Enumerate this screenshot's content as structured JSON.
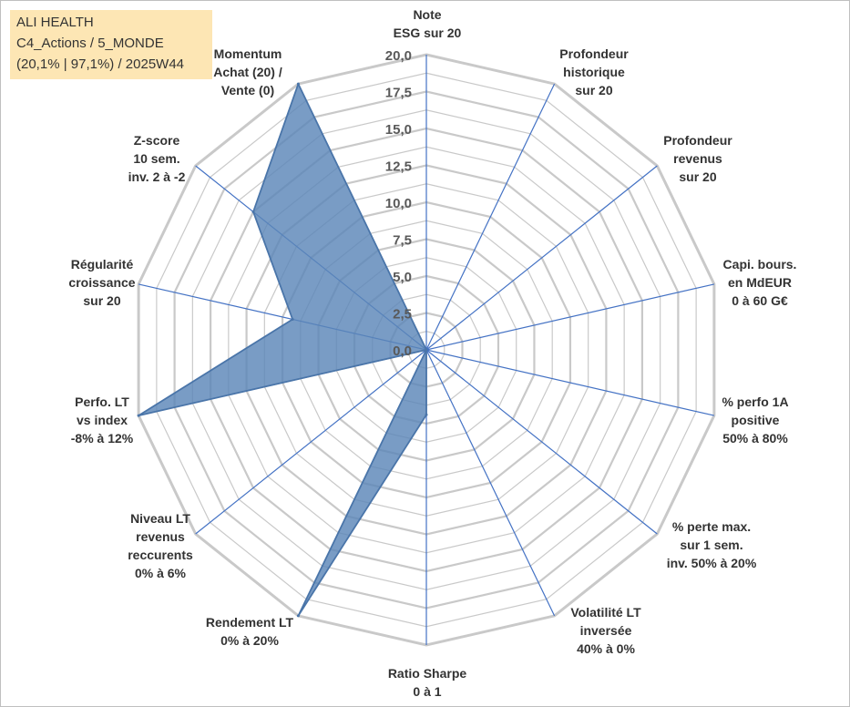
{
  "title_box": {
    "line1": "ALI HEALTH",
    "line2": "C4_Actions / 5_MONDE",
    "line3": "(20,1% | 97,1%) / 2025W44"
  },
  "chart_data": {
    "type": "radar",
    "title": "ALI HEALTH",
    "range": [
      0,
      20
    ],
    "ticks": [
      "0,0",
      "2,5",
      "5,0",
      "7,5",
      "10,0",
      "12,5",
      "15,0",
      "17,5",
      "20,0"
    ],
    "tick_values": [
      0,
      2.5,
      5,
      7.5,
      10,
      12.5,
      15,
      17.5,
      20
    ],
    "grid_rings": 16,
    "axes": [
      {
        "label": [
          "Note",
          "ESG sur 20"
        ],
        "value": 0
      },
      {
        "label": [
          "Profondeur",
          "historique",
          "sur 20"
        ],
        "value": 0
      },
      {
        "label": [
          "Profondeur",
          "revenus",
          "sur 20"
        ],
        "value": 0
      },
      {
        "label": [
          "Capi. bours.",
          "en MdEUR",
          "0 à 60 G€"
        ],
        "value": 0
      },
      {
        "label": [
          "% perfo 1A",
          "positive",
          "50% à 80%"
        ],
        "value": 0
      },
      {
        "label": [
          "% perte max.",
          "sur 1 sem.",
          "inv. 50% à 20%"
        ],
        "value": 0
      },
      {
        "label": [
          "Volatilité LT",
          "inversée",
          "40% à 0%"
        ],
        "value": 0
      },
      {
        "label": [
          "Ratio Sharpe",
          "0 à 1"
        ],
        "value": 4.4
      },
      {
        "label": [
          "Rendement LT",
          "0% à 20%"
        ],
        "value": 20
      },
      {
        "label": [
          "Niveau LT",
          "revenus",
          "reccurents",
          "0% à 6%"
        ],
        "value": 0
      },
      {
        "label": [
          "Perfo. LT",
          "vs index",
          "-8% à 12%"
        ],
        "value": 20
      },
      {
        "label": [
          "Régularité",
          "croissance",
          "sur 20"
        ],
        "value": 9.3
      },
      {
        "label": [
          "Z-score",
          "10 sem.",
          "inv. 2 à -2"
        ],
        "value": 15.0
      },
      {
        "label": [
          "Momentum",
          "Achat (20) /",
          "Vente (0)"
        ],
        "value": 20
      }
    ],
    "series": [
      {
        "name": "ALI HEALTH",
        "color": "#4a75a9",
        "fill": "#5b86b8"
      }
    ],
    "grid_color": "#c9c9c9",
    "spoke_color": "#4472c4"
  }
}
